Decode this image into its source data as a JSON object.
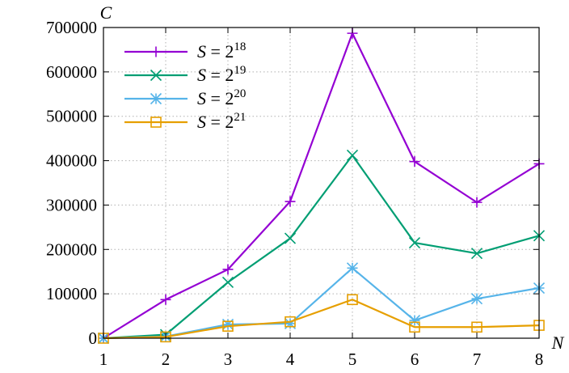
{
  "chart_data": {
    "type": "line",
    "title": "",
    "xlabel": "N",
    "ylabel": "C",
    "x": [
      1,
      2,
      3,
      4,
      5,
      6,
      7,
      8
    ],
    "xlim": [
      1,
      8
    ],
    "ylim": [
      0,
      700000
    ],
    "x_ticks": [
      "1",
      "2",
      "3",
      "4",
      "5",
      "6",
      "7",
      "8"
    ],
    "y_ticks": [
      "0",
      "100000",
      "200000",
      "300000",
      "400000",
      "500000",
      "600000",
      "700000"
    ],
    "grid": true,
    "legend_position": "top-left",
    "series": [
      {
        "name": "S = 2^18",
        "legend": {
          "base": "S",
          "eq": " = 2",
          "exp": "18"
        },
        "marker": "plus",
        "color": "#9400d3",
        "values": [
          0,
          87000,
          155000,
          308000,
          687000,
          398000,
          306000,
          393000
        ]
      },
      {
        "name": "S = 2^19",
        "legend": {
          "base": "S",
          "eq": " = 2",
          "exp": "19"
        },
        "marker": "cross",
        "color": "#009e73",
        "values": [
          0,
          8000,
          126000,
          225000,
          412000,
          215000,
          191000,
          231000
        ]
      },
      {
        "name": "S = 2^20",
        "legend": {
          "base": "S",
          "eq": " = 2",
          "exp": "20"
        },
        "marker": "asterisk",
        "color": "#56b4e9",
        "values": [
          0,
          4000,
          31000,
          33000,
          158000,
          40000,
          89000,
          113000
        ]
      },
      {
        "name": "S = 2^21",
        "legend": {
          "base": "S",
          "eq": " = 2",
          "exp": "21"
        },
        "marker": "square",
        "color": "#e69f00",
        "values": [
          0,
          3000,
          27000,
          37000,
          87000,
          25000,
          25000,
          29000
        ]
      }
    ]
  }
}
